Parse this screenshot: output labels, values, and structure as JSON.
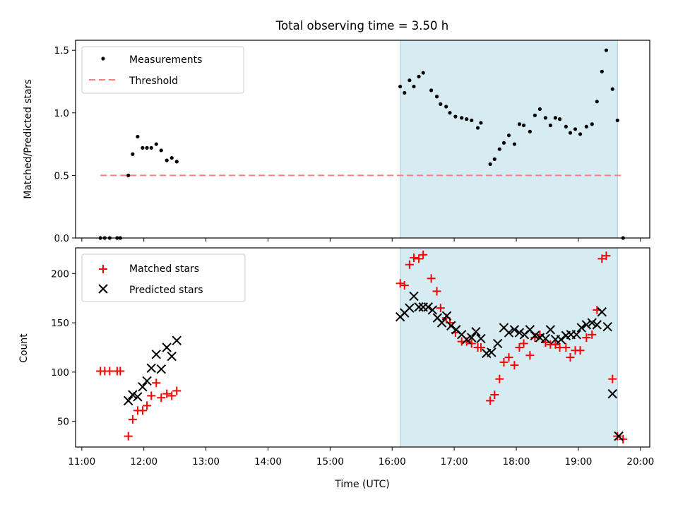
{
  "chart_data": [
    {
      "panel": "top",
      "type": "scatter",
      "title": "Total observing time = 3.50 h",
      "xlabel": "",
      "ylabel": "Matched/Predicted stars",
      "xlim": [
        10.9,
        20.15
      ],
      "ylim": [
        0,
        1.58
      ],
      "yticks": [
        0,
        0.5,
        1.0,
        1.5
      ],
      "ytick_labels": [
        "0.0",
        "0.5",
        "1.0",
        "1.5"
      ],
      "xticks": [
        11,
        12,
        13,
        14,
        15,
        16,
        17,
        18,
        19,
        20
      ],
      "shaded_region": [
        16.13,
        19.63
      ],
      "legend_placement": "top-left",
      "series": [
        {
          "name": "Measurements",
          "marker": "dot",
          "color": "#000000",
          "x": [
            11.3,
            11.37,
            11.45,
            11.57,
            11.62,
            11.75,
            11.82,
            11.9,
            11.98,
            12.05,
            12.12,
            12.2,
            12.28,
            12.37,
            12.45,
            12.53,
            16.13,
            16.2,
            16.28,
            16.35,
            16.43,
            16.5,
            16.63,
            16.72,
            16.78,
            16.87,
            16.93,
            17.02,
            17.12,
            17.2,
            17.28,
            17.38,
            17.43,
            17.58,
            17.65,
            17.73,
            17.8,
            17.88,
            17.97,
            18.05,
            18.12,
            18.22,
            18.3,
            18.38,
            18.47,
            18.55,
            18.63,
            18.7,
            18.8,
            18.87,
            18.95,
            19.03,
            19.13,
            19.22,
            19.3,
            19.38,
            19.45,
            19.55,
            19.63,
            19.72
          ],
          "y": [
            0,
            0,
            0,
            0,
            0,
            0.5,
            0.67,
            0.81,
            0.72,
            0.72,
            0.72,
            0.75,
            0.7,
            0.62,
            0.64,
            0.61,
            1.21,
            1.16,
            1.26,
            1.21,
            1.29,
            1.32,
            1.18,
            1.13,
            1.07,
            1.05,
            1.0,
            0.97,
            0.96,
            0.95,
            0.94,
            0.88,
            0.92,
            0.59,
            0.63,
            0.71,
            0.76,
            0.82,
            0.75,
            0.91,
            0.9,
            0.85,
            0.98,
            1.03,
            0.96,
            0.9,
            0.96,
            0.95,
            0.89,
            0.84,
            0.87,
            0.83,
            0.89,
            0.91,
            1.09,
            1.33,
            1.5,
            1.19,
            0.94,
            0
          ]
        },
        {
          "name": "Threshold",
          "marker": "dashed-line",
          "color": "#f28080",
          "x": [
            11.3,
            19.72
          ],
          "y": [
            0.5,
            0.5
          ]
        }
      ]
    },
    {
      "panel": "bottom",
      "type": "scatter",
      "title": "",
      "xlabel": "Time (UTC)",
      "ylabel": "Count",
      "xlim": [
        10.9,
        20.15
      ],
      "ylim": [
        24,
        226
      ],
      "yticks": [
        50,
        100,
        150,
        200
      ],
      "ytick_labels": [
        "50",
        "100",
        "150",
        "200"
      ],
      "xticks": [
        11,
        12,
        13,
        14,
        15,
        16,
        17,
        18,
        19,
        20
      ],
      "xtick_labels": [
        "11:00",
        "12:00",
        "13:00",
        "14:00",
        "15:00",
        "16:00",
        "17:00",
        "18:00",
        "19:00",
        "20:00"
      ],
      "shaded_region": [
        16.13,
        19.63
      ],
      "legend_placement": "top-left",
      "series": [
        {
          "name": "Matched stars",
          "marker": "plus",
          "color": "#ff0000",
          "x": [
            11.3,
            11.37,
            11.45,
            11.57,
            11.62,
            11.75,
            11.82,
            11.9,
            11.98,
            12.05,
            12.12,
            12.2,
            12.28,
            12.37,
            12.45,
            12.53,
            16.13,
            16.2,
            16.28,
            16.35,
            16.43,
            16.5,
            16.63,
            16.72,
            16.78,
            16.87,
            16.93,
            17.02,
            17.12,
            17.2,
            17.28,
            17.38,
            17.43,
            17.58,
            17.65,
            17.73,
            17.8,
            17.88,
            17.97,
            18.05,
            18.12,
            18.22,
            18.3,
            18.38,
            18.47,
            18.55,
            18.63,
            18.7,
            18.8,
            18.87,
            18.95,
            19.03,
            19.13,
            19.22,
            19.3,
            19.38,
            19.45,
            19.55,
            19.63,
            19.72
          ],
          "y": [
            101,
            101,
            101,
            101,
            101,
            35,
            52,
            61,
            61,
            66,
            76,
            89,
            74,
            78,
            76,
            81,
            190,
            188,
            209,
            216,
            215,
            219,
            195,
            182,
            165,
            155,
            150,
            140,
            131,
            131,
            129,
            125,
            125,
            71,
            77,
            93,
            110,
            115,
            107,
            125,
            129,
            117,
            135,
            138,
            130,
            128,
            128,
            125,
            125,
            115,
            122,
            122,
            135,
            138,
            163,
            215,
            218,
            93,
            35,
            32
          ]
        },
        {
          "name": "Predicted stars",
          "marker": "x",
          "color": "#000000",
          "x": [
            11.75,
            11.82,
            11.9,
            11.98,
            12.05,
            12.12,
            12.2,
            12.28,
            12.37,
            12.45,
            12.53,
            16.13,
            16.2,
            16.28,
            16.35,
            16.43,
            16.5,
            16.58,
            16.65,
            16.73,
            16.8,
            16.88,
            16.95,
            17.03,
            17.12,
            17.2,
            17.28,
            17.35,
            17.43,
            17.52,
            17.6,
            17.7,
            17.8,
            17.88,
            17.97,
            18.05,
            18.13,
            18.22,
            18.3,
            18.38,
            18.47,
            18.55,
            18.63,
            18.72,
            18.8,
            18.88,
            18.97,
            19.05,
            19.13,
            19.22,
            19.3,
            19.38,
            19.47,
            19.55,
            19.65
          ],
          "y": [
            71,
            77,
            75,
            85,
            91,
            104,
            118,
            103,
            125,
            116,
            132,
            156,
            160,
            165,
            177,
            166,
            166,
            166,
            163,
            155,
            150,
            157,
            147,
            143,
            138,
            133,
            135,
            141,
            134,
            119,
            120,
            129,
            145,
            140,
            143,
            140,
            138,
            143,
            137,
            135,
            134,
            143,
            133,
            133,
            137,
            138,
            138,
            145,
            148,
            150,
            148,
            161,
            146,
            78,
            35
          ]
        }
      ]
    }
  ]
}
